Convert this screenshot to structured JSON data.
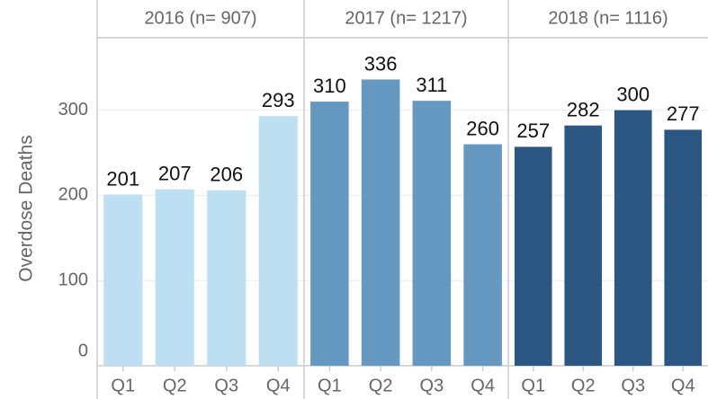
{
  "chart_data": [
    {
      "type": "bar",
      "title": "2016 (n= 907)",
      "categories": [
        "Q1",
        "Q2",
        "Q3",
        "Q4"
      ],
      "values": [
        201,
        207,
        206,
        293
      ],
      "color": "#bcdff1",
      "ylim": [
        0,
        385
      ],
      "yticks": [
        0,
        100,
        200,
        300
      ],
      "y_label": "Overdose Deaths",
      "grid": true
    },
    {
      "type": "bar",
      "title": "2017 (n= 1217)",
      "categories": [
        "Q1",
        "Q2",
        "Q3",
        "Q4"
      ],
      "values": [
        310,
        336,
        311,
        260
      ],
      "color": "#6699c2",
      "ylim": [
        0,
        385
      ]
    },
    {
      "type": "bar",
      "title": "2018 (n= 1116)",
      "categories": [
        "Q1",
        "Q2",
        "Q3",
        "Q4"
      ],
      "values": [
        257,
        282,
        300,
        277
      ],
      "color": "#2c5783",
      "ylim": [
        0,
        385
      ]
    }
  ]
}
